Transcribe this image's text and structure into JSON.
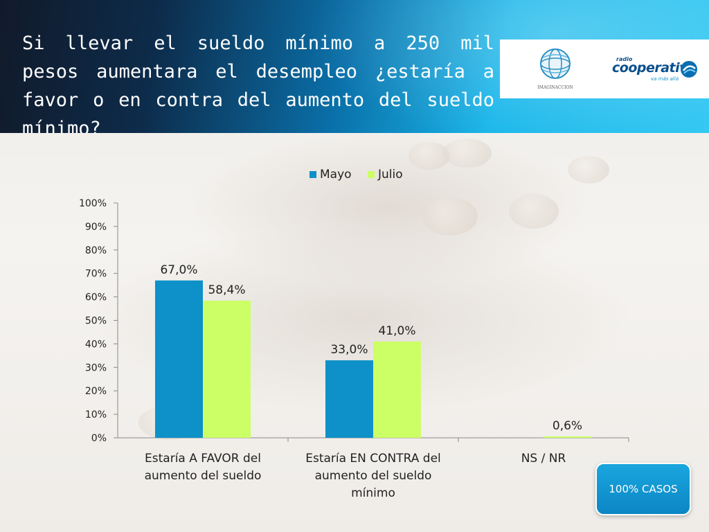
{
  "slide": {
    "title": "Si llevar el sueldo mínimo a 250 mil pesos aumentara el desempleo ¿estaría a favor o en contra del aumento del sueldo mínimo?",
    "logos": {
      "left_name": "IMAGINACCION",
      "right_small": "radio",
      "right_main": "cooperativa",
      "right_tagline": "va más allá"
    },
    "badge_label": "100% CASOS"
  },
  "colors": {
    "header_accent": "#1aa6de",
    "mayo": "#0e91c8",
    "julio": "#ccff66"
  },
  "chart_data": {
    "type": "bar",
    "categories": [
      [
        "Estaría A FAVOR del",
        "aumento del sueldo"
      ],
      [
        "Estaría EN CONTRA del",
        "aumento del sueldo",
        "mínimo"
      ],
      [
        "NS / NR"
      ]
    ],
    "series": [
      {
        "name": "Mayo",
        "values": [
          67.0,
          33.0,
          null
        ],
        "labels": [
          "67,0%",
          "33,0%",
          ""
        ]
      },
      {
        "name": "Julio",
        "values": [
          58.4,
          41.0,
          0.6
        ],
        "labels": [
          "58,4%",
          "41,0%",
          "0,6%"
        ]
      }
    ],
    "yticks": [
      "0%",
      "10%",
      "20%",
      "30%",
      "40%",
      "50%",
      "60%",
      "70%",
      "80%",
      "90%",
      "100%"
    ],
    "ylim": [
      0,
      100
    ],
    "grid": false,
    "legend": "top"
  }
}
